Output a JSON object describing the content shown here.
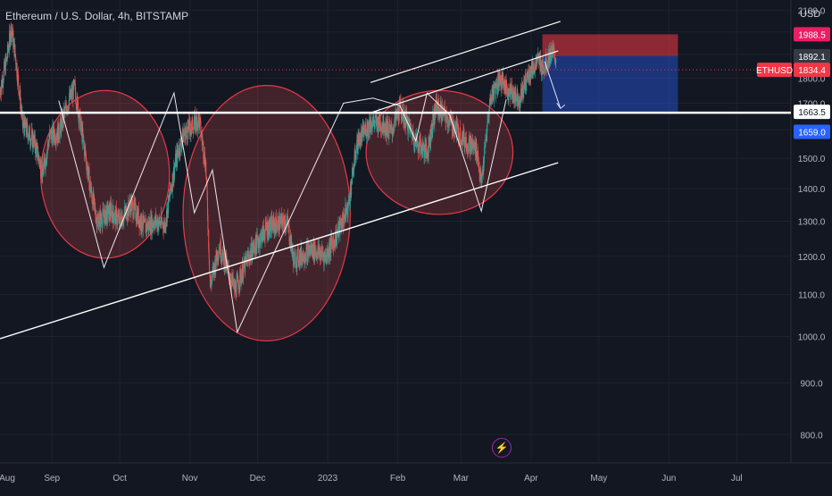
{
  "header": {
    "symbol_title": "Ethereum / U.S. Dollar, 4h, BITSTAMP",
    "currency": "USD"
  },
  "colors": {
    "background": "#131722",
    "candle_up": "#26a69a",
    "candle_down": "#ef5350",
    "circle_fill": "#ef5350",
    "target_box": "#2962ff",
    "stop_box": "#f23645",
    "level_tag_1988": "#e91e63",
    "level_tag_1659": "#2962ff",
    "level_tag_ethusd": "#f23645"
  },
  "chart_data": {
    "type": "candlestick",
    "symbol": "Ethereum / U.S. Dollar",
    "interval": "4h",
    "exchange": "BITSTAMP",
    "ylim": [
      750,
      2150
    ],
    "yscale": "log",
    "y_ticks": [
      "800.0",
      "900.0",
      "1000.0",
      "1100.0",
      "1200.0",
      "1300.0",
      "1400.0",
      "1500.0",
      "1600.0",
      "1700.0",
      "1800.0",
      "1900.0",
      "2000.0",
      "2100.0"
    ],
    "x_ticks": [
      "Aug",
      "Sep",
      "Oct",
      "Nov",
      "Dec",
      "2023",
      "Feb",
      "Mar",
      "Apr",
      "May",
      "Jun",
      "Jul"
    ],
    "x_range": [
      "2022-08-09",
      "2023-07-25"
    ],
    "price_path": [
      [
        "2022-08-09",
        1750
      ],
      [
        "2022-08-12",
        1880
      ],
      [
        "2022-08-14",
        2020
      ],
      [
        "2022-08-16",
        1880
      ],
      [
        "2022-08-19",
        1620
      ],
      [
        "2022-08-24",
        1560
      ],
      [
        "2022-08-28",
        1450
      ],
      [
        "2022-08-31",
        1580
      ],
      [
        "2022-09-04",
        1590
      ],
      [
        "2022-09-08",
        1700
      ],
      [
        "2022-09-11",
        1760
      ],
      [
        "2022-09-14",
        1600
      ],
      [
        "2022-09-18",
        1400
      ],
      [
        "2022-09-21",
        1300
      ],
      [
        "2022-09-27",
        1330
      ],
      [
        "2022-10-01",
        1300
      ],
      [
        "2022-10-06",
        1350
      ],
      [
        "2022-10-12",
        1280
      ],
      [
        "2022-10-16",
        1300
      ],
      [
        "2022-10-21",
        1290
      ],
      [
        "2022-10-26",
        1500
      ],
      [
        "2022-10-29",
        1580
      ],
      [
        "2022-11-05",
        1640
      ],
      [
        "2022-11-08",
        1480
      ],
      [
        "2022-11-10",
        1120
      ],
      [
        "2022-11-14",
        1230
      ],
      [
        "2022-11-21",
        1110
      ],
      [
        "2022-11-27",
        1200
      ],
      [
        "2022-12-05",
        1280
      ],
      [
        "2022-12-14",
        1300
      ],
      [
        "2022-12-17",
        1190
      ],
      [
        "2022-12-25",
        1220
      ],
      [
        "2022-12-31",
        1200
      ],
      [
        "2023-01-05",
        1260
      ],
      [
        "2023-01-10",
        1340
      ],
      [
        "2023-01-14",
        1550
      ],
      [
        "2023-01-20",
        1630
      ],
      [
        "2023-01-26",
        1620
      ],
      [
        "2023-01-29",
        1590
      ],
      [
        "2023-02-02",
        1680
      ],
      [
        "2023-02-09",
        1560
      ],
      [
        "2023-02-14",
        1520
      ],
      [
        "2023-02-18",
        1690
      ],
      [
        "2023-02-25",
        1620
      ],
      [
        "2023-03-03",
        1560
      ],
      [
        "2023-03-08",
        1530
      ],
      [
        "2023-03-10",
        1410
      ],
      [
        "2023-03-14",
        1720
      ],
      [
        "2023-03-18",
        1800
      ],
      [
        "2023-03-22",
        1750
      ],
      [
        "2023-03-27",
        1720
      ],
      [
        "2023-03-31",
        1820
      ],
      [
        "2023-04-04",
        1870
      ],
      [
        "2023-04-07",
        1850
      ],
      [
        "2023-04-10",
        1910
      ],
      [
        "2023-04-12",
        1880
      ]
    ],
    "price_labels": [
      {
        "label": "1988.5",
        "value": 1988.5,
        "role": "stop loss"
      },
      {
        "label": "1892.1",
        "value": 1892.1,
        "role": "entry"
      },
      {
        "label": "ETHUSD",
        "value": 1834.4,
        "role": "last price"
      },
      {
        "label": "1834.4",
        "value": 1834.4,
        "role": "last price"
      },
      {
        "label": "1663.5",
        "value": 1663.5,
        "role": "horizontal level"
      },
      {
        "label": "1659.0",
        "value": 1659.0,
        "role": "take profit"
      }
    ],
    "drawings": {
      "horizontal_line": 1663.5,
      "short_position": {
        "entry": 1892.1,
        "stop": 1988.5,
        "target": 1659.0,
        "start": "2023-04-06",
        "end": "2023-06-05"
      },
      "support_trendline": [
        [
          "2022-08-09",
          995
        ],
        [
          "2023-04-13",
          1485
        ]
      ],
      "channel_upper": [
        [
          "2023-01-20",
          1782
        ],
        [
          "2023-04-14",
          2048
        ]
      ],
      "channel_lower": [
        [
          "2023-01-20",
          1663.5
        ],
        [
          "2023-04-13",
          1915
        ]
      ],
      "ellipses": [
        {
          "start": "2022-08-27",
          "end": "2022-10-23",
          "top": 1750,
          "bottom": 1195
        },
        {
          "start": "2022-10-29",
          "end": "2023-01-11",
          "top": 1770,
          "bottom": 990
        },
        {
          "start": "2023-01-18",
          "end": "2023-03-24",
          "top": 1750,
          "bottom": 1320
        }
      ],
      "zigzag": [
        [
          "2022-09-04",
          1710
        ],
        [
          "2022-09-24",
          1170
        ],
        [
          "2022-10-25",
          1740
        ],
        [
          "2022-11-03",
          1325
        ],
        [
          "2022-11-11",
          1460
        ],
        [
          "2022-11-22",
          1010
        ],
        [
          "2023-01-08",
          1700
        ],
        [
          "2023-01-21",
          1720
        ],
        [
          "2023-02-02",
          1690
        ],
        [
          "2023-02-09",
          1560
        ],
        [
          "2023-02-14",
          1740
        ],
        [
          "2023-02-24",
          1655
        ],
        [
          "2023-03-10",
          1330
        ],
        [
          "2023-03-21",
          1715
        ]
      ],
      "forecast_arrow": [
        [
          "2023-04-07",
          1870
        ],
        [
          "2023-04-14",
          1680
        ]
      ]
    }
  }
}
